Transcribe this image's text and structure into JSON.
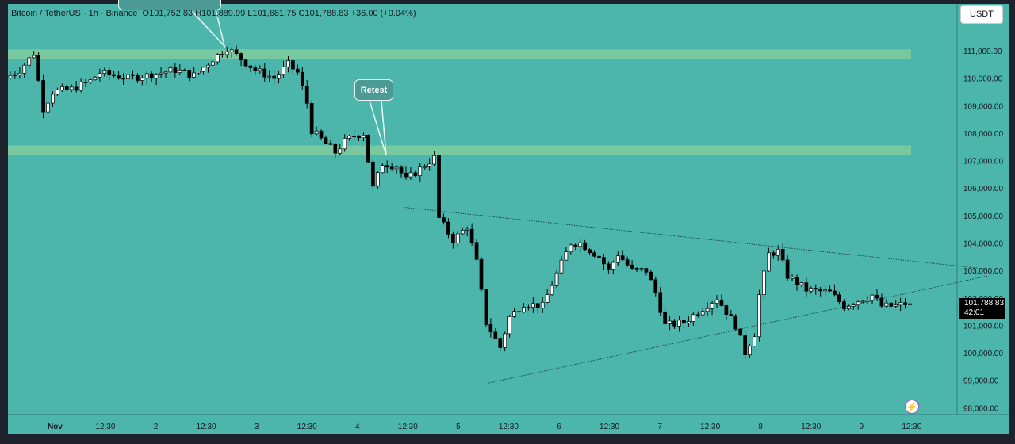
{
  "header": {
    "symbol_info": "Bitcoin / TetherUS · 1h · Binance",
    "open_label": "O",
    "open": "101,752.83",
    "high_label": "H",
    "high": "101,889.99",
    "low_label": "L",
    "low": "101,681.75",
    "close_label": "C",
    "close": "101,788.83",
    "change": "+36.00 (+0.04%)"
  },
  "currency_button": "USDT",
  "last_price": {
    "price": "101,788.83",
    "countdown": "42:01"
  },
  "annotation": {
    "label": "Retest"
  },
  "colors": {
    "background": "#4db6ac",
    "zone": "#7dca9e",
    "candle_up": "#ffffff",
    "candle_down": "#000000",
    "panel": "#1e222d",
    "bolt": "#9b59d0"
  },
  "icons": {
    "quick_action": "lightning-bolt-icon"
  },
  "chart_data": {
    "type": "candlestick",
    "title": "Bitcoin / TetherUS · 1h · Binance",
    "y_axis": {
      "unit": "USDT",
      "range": [
        97800,
        112500
      ],
      "tick_labels": [
        "111,000.00",
        "110,000.00",
        "109,000.00",
        "108,000.00",
        "107,000.00",
        "106,000.00",
        "105,000.00",
        "104,000.00",
        "103,000.00",
        "102,000.00",
        "101,000.00",
        "100,000.00",
        "99,000.00",
        "98,000.00"
      ],
      "ticks": [
        111000,
        110000,
        109000,
        108000,
        107000,
        106000,
        105000,
        104000,
        103000,
        102000,
        101000,
        100000,
        99000,
        98000
      ]
    },
    "x_axis": {
      "tick_labels": [
        "Nov",
        "12:30",
        "2",
        "12:30",
        "3",
        "12:30",
        "4",
        "12:30",
        "5",
        "12:30",
        "6",
        "12:30",
        "7",
        "12:30",
        "8",
        "12:30",
        "9",
        "12:30"
      ],
      "range_hours": [
        0,
        192
      ]
    },
    "zones": [
      {
        "from": 110700,
        "to": 111050
      },
      {
        "from": 107200,
        "to": 107550
      }
    ],
    "trendlines": [
      {
        "from": {
          "t": 84,
          "p": 105300
        },
        "to": {
          "t": 208,
          "p": 103050
        }
      },
      {
        "from": {
          "t": 102,
          "p": 98900
        },
        "to": {
          "t": 208,
          "p": 102800
        }
      }
    ],
    "keypoints": [
      {
        "t": 0,
        "p": 110000
      },
      {
        "t": 3,
        "p": 110300
      },
      {
        "t": 6,
        "p": 110900
      },
      {
        "t": 8,
        "p": 108900
      },
      {
        "t": 10,
        "p": 109500
      },
      {
        "t": 14,
        "p": 109600
      },
      {
        "t": 18,
        "p": 109900
      },
      {
        "t": 20,
        "p": 110200
      },
      {
        "t": 26,
        "p": 110000
      },
      {
        "t": 30,
        "p": 110100
      },
      {
        "t": 36,
        "p": 110300
      },
      {
        "t": 40,
        "p": 110100
      },
      {
        "t": 44,
        "p": 110700
      },
      {
        "t": 47,
        "p": 111100
      },
      {
        "t": 50,
        "p": 110700
      },
      {
        "t": 53,
        "p": 110300
      },
      {
        "t": 57,
        "p": 110000
      },
      {
        "t": 60,
        "p": 110500
      },
      {
        "t": 62,
        "p": 110200
      },
      {
        "t": 64,
        "p": 109100
      },
      {
        "t": 65,
        "p": 108100
      },
      {
        "t": 70,
        "p": 107300
      },
      {
        "t": 72,
        "p": 107700
      },
      {
        "t": 74,
        "p": 107900
      },
      {
        "t": 76,
        "p": 108000
      },
      {
        "t": 78,
        "p": 106000
      },
      {
        "t": 80,
        "p": 106900
      },
      {
        "t": 83,
        "p": 106800
      },
      {
        "t": 85,
        "p": 106300
      },
      {
        "t": 88,
        "p": 106700
      },
      {
        "t": 91,
        "p": 107100
      },
      {
        "t": 92,
        "p": 104900
      },
      {
        "t": 95,
        "p": 104100
      },
      {
        "t": 98,
        "p": 104600
      },
      {
        "t": 100,
        "p": 103300
      },
      {
        "t": 102,
        "p": 101100
      },
      {
        "t": 105,
        "p": 100200
      },
      {
        "t": 107,
        "p": 101300
      },
      {
        "t": 110,
        "p": 101800
      },
      {
        "t": 114,
        "p": 101700
      },
      {
        "t": 116,
        "p": 102500
      },
      {
        "t": 120,
        "p": 104000
      },
      {
        "t": 122,
        "p": 104000
      },
      {
        "t": 126,
        "p": 103500
      },
      {
        "t": 128,
        "p": 103000
      },
      {
        "t": 130,
        "p": 103600
      },
      {
        "t": 133,
        "p": 103000
      },
      {
        "t": 136,
        "p": 103000
      },
      {
        "t": 138,
        "p": 102200
      },
      {
        "t": 140,
        "p": 101000
      },
      {
        "t": 144,
        "p": 101100
      },
      {
        "t": 147,
        "p": 101500
      },
      {
        "t": 151,
        "p": 102000
      },
      {
        "t": 155,
        "p": 101000
      },
      {
        "t": 157,
        "p": 100000
      },
      {
        "t": 159,
        "p": 100700
      },
      {
        "t": 160,
        "p": 102100
      },
      {
        "t": 162,
        "p": 103600
      },
      {
        "t": 164,
        "p": 103700
      },
      {
        "t": 166,
        "p": 102800
      },
      {
        "t": 170,
        "p": 102300
      },
      {
        "t": 175,
        "p": 102200
      },
      {
        "t": 178,
        "p": 101700
      },
      {
        "t": 181,
        "p": 101900
      },
      {
        "t": 184,
        "p": 102100
      },
      {
        "t": 186,
        "p": 101700
      },
      {
        "t": 189,
        "p": 101700
      },
      {
        "t": 191,
        "p": 101790
      }
    ]
  }
}
